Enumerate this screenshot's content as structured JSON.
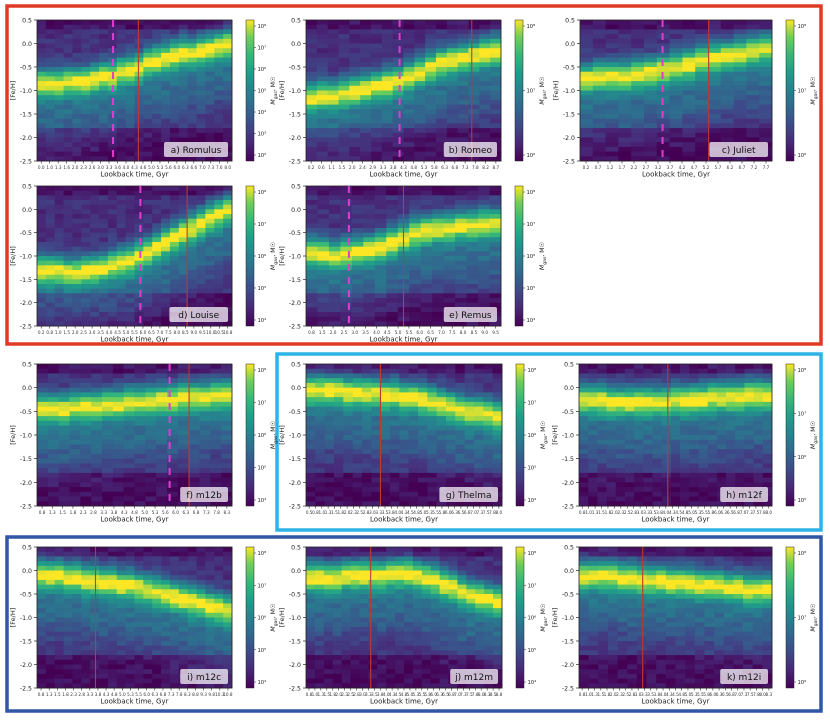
{
  "colors": {
    "group_red": "#e03a25",
    "group_cyan": "#2db3e6",
    "group_blue": "#2f57a6",
    "dashed_line": "#e23bd0",
    "solid_line": "#c0392b",
    "colormap": "viridis"
  },
  "y_axis_label": "[Fe/H]",
  "x_axis_label": "Lookback time, Gyr",
  "colorbar_label": "M_gas, M_☉",
  "colorbar_label_main": "M",
  "colorbar_label_sub": "gas",
  "colorbar_label_unit": ", M☉",
  "chart_data": [
    {
      "type": "heatmap",
      "panel_label": "a) Romulus",
      "ylim": [
        -2.5,
        0.5
      ],
      "yticks": [
        "0.5",
        "0.0",
        "-0.5",
        "-1.0",
        "-1.5",
        "-2.0",
        "-2.5"
      ],
      "xticks": [
        "0.0",
        "1.0",
        "1.3",
        "1.6",
        "2.0",
        "2.3",
        "2.6",
        "3.0",
        "3.3",
        "3.6",
        "4.0",
        "4.3",
        "4.6",
        "5.0",
        "5.3",
        "5.6",
        "6.0",
        "6.3",
        "6.6",
        "7.0",
        "7.3",
        "7.6",
        "8.0"
      ],
      "colorbar_ticks": [
        "10⁸",
        "10⁷",
        "10⁶",
        "10⁵",
        "10⁴",
        "10³",
        "10²"
      ],
      "dashed_line_frac": 0.39,
      "solid_line_frac": 0.52,
      "ridge": [
        -0.85,
        -0.85,
        -0.85,
        -0.8,
        -0.8,
        -0.8,
        -0.75,
        -0.7,
        -0.7,
        -0.6,
        -0.55,
        -0.5,
        -0.4,
        -0.35,
        -0.3,
        -0.25,
        -0.2,
        -0.2,
        -0.15,
        -0.1,
        -0.05,
        0.0
      ]
    },
    {
      "type": "heatmap",
      "panel_label": "b) Romeo",
      "ylim": [
        -2.5,
        0.5
      ],
      "yticks": [
        "0.5",
        "0.0",
        "-0.5",
        "-1.0",
        "-1.5",
        "-2.0",
        "-2.5"
      ],
      "xticks": [
        "0.2",
        "0.6",
        "1.1",
        "1.5",
        "2.0",
        "2.4",
        "2.9",
        "3.3",
        "3.8",
        "4.3",
        "4.8",
        "5.3",
        "5.8",
        "6.3",
        "6.8",
        "7.3",
        "7.8",
        "8.2",
        "8.7"
      ],
      "colorbar_ticks": [
        "10⁸",
        "10⁷",
        "10⁶"
      ],
      "dashed_line_frac": 0.48,
      "solid_line_frac": 0.85,
      "ridge": [
        -1.15,
        -1.1,
        -1.1,
        -1.05,
        -1.0,
        -0.95,
        -0.9,
        -0.85,
        -0.8,
        -0.7,
        -0.6,
        -0.5,
        -0.4,
        -0.35,
        -0.3,
        -0.25,
        -0.2,
        -0.15
      ]
    },
    {
      "type": "heatmap",
      "panel_label": "c) Juliet",
      "ylim": [
        -2.5,
        0.5
      ],
      "yticks": [
        "0.5",
        "0.0",
        "-0.5",
        "-1.0",
        "-1.5",
        "-2.0",
        "-2.5"
      ],
      "xticks": [
        "0.2",
        "0.7",
        "1.2",
        "1.7",
        "2.2",
        "2.7",
        "3.2",
        "3.7",
        "4.2",
        "4.7",
        "5.2",
        "5.7",
        "6.2",
        "6.7",
        "7.2",
        "7.7"
      ],
      "colorbar_ticks": [
        "10⁸",
        "10⁷",
        "10⁶"
      ],
      "dashed_line_frac": 0.43,
      "solid_line_frac": 0.67,
      "ridge": [
        -0.75,
        -0.7,
        -0.7,
        -0.7,
        -0.65,
        -0.6,
        -0.55,
        -0.5,
        -0.45,
        -0.35,
        -0.3,
        -0.25,
        -0.2,
        -0.15,
        -0.1
      ]
    },
    {
      "type": "heatmap",
      "panel_label": "d) Louise",
      "ylim": [
        -2.5,
        0.5
      ],
      "yticks": [
        "0.5",
        "0.0",
        "-0.5",
        "-1.0",
        "-1.5",
        "-2.0",
        "-2.5"
      ],
      "xticks": [
        "0.2",
        "0.8",
        "1.0",
        "1.5",
        "2.0",
        "2.5",
        "3.0",
        "3.5",
        "4.0",
        "4.5",
        "5.0",
        "5.5",
        "6.0",
        "6.5",
        "7.0",
        "7.5",
        "8.0",
        "8.5",
        "9.0",
        "9.5",
        "10.0",
        "10.5",
        "10.8"
      ],
      "colorbar_ticks": [
        "10⁸",
        "10⁷",
        "10⁶",
        "10⁵",
        "10⁴"
      ],
      "dashed_line_frac": 0.53,
      "solid_line_frac": 0.77,
      "ridge": [
        -1.3,
        -1.3,
        -1.3,
        -1.35,
        -1.35,
        -1.3,
        -1.3,
        -1.25,
        -1.2,
        -1.15,
        -1.1,
        -1.0,
        -0.9,
        -0.8,
        -0.7,
        -0.6,
        -0.5,
        -0.4,
        -0.3,
        -0.2,
        -0.1,
        0.0
      ]
    },
    {
      "type": "heatmap",
      "panel_label": "e) Remus",
      "ylim": [
        -2.5,
        0.5
      ],
      "yticks": [
        "0.5",
        "0.0",
        "-0.5",
        "-1.0",
        "-1.5",
        "-2.0",
        "-2.5"
      ],
      "xticks": [
        "0.8",
        "1.5",
        "2.0",
        "2.5",
        "3.0",
        "3.5",
        "4.0",
        "4.5",
        "5.0",
        "5.5",
        "6.0",
        "6.5",
        "7.0",
        "7.5",
        "8.0",
        "8.5",
        "9.0",
        "9.5"
      ],
      "colorbar_ticks": [
        "10⁸",
        "10⁷",
        "10⁶",
        "10⁵",
        "10⁴"
      ],
      "dashed_line_frac": 0.22,
      "solid_line_frac": 0.5,
      "ridge": [
        -0.9,
        -0.95,
        -1.0,
        -0.95,
        -0.9,
        -0.85,
        -0.8,
        -0.7,
        -0.6,
        -0.5,
        -0.45,
        -0.4,
        -0.4,
        -0.35,
        -0.35,
        -0.3,
        -0.3
      ]
    },
    {
      "type": "heatmap",
      "panel_label": "f) m12b",
      "ylim": [
        -2.5,
        0.5
      ],
      "yticks": [
        "0.5",
        "0.0",
        "-0.5",
        "-1.0",
        "-1.5",
        "-2.0",
        "-2.5"
      ],
      "xticks": [
        "0.8",
        "1.3",
        "1.5",
        "1.8",
        "2.3",
        "2.8",
        "3.3",
        "3.8",
        "4.3",
        "4.8",
        "5.0",
        "5.3",
        "5.6",
        "6.0",
        "6.3",
        "6.8",
        "7.3",
        "7.8",
        "8.3"
      ],
      "colorbar_ticks": [
        "10⁸",
        "10⁷",
        "10⁶",
        "10⁵",
        "10⁴"
      ],
      "dashed_line_frac": 0.68,
      "solid_line_frac": 0.78,
      "ridge": [
        -0.45,
        -0.45,
        -0.45,
        -0.4,
        -0.4,
        -0.4,
        -0.35,
        -0.35,
        -0.3,
        -0.3,
        -0.3,
        -0.25,
        -0.25,
        -0.2,
        -0.2,
        -0.2,
        -0.15,
        -0.15
      ]
    },
    {
      "type": "heatmap",
      "panel_label": "g) Thelma",
      "ylim": [
        -2.5,
        0.5
      ],
      "yticks": [
        "0.5",
        "0.0",
        "-0.5",
        "-1.0",
        "-1.5",
        "-2.0",
        "-2.5"
      ],
      "xticks": [
        "0.5",
        "0.8",
        "1.0",
        "1.3",
        "1.5",
        "1.8",
        "2.0",
        "2.3",
        "2.5",
        "2.8",
        "3.0",
        "3.3",
        "3.5",
        "3.8",
        "4.0",
        "4.3",
        "4.5",
        "4.8",
        "5.0",
        "5.3",
        "5.5",
        "5.8",
        "6.0",
        "6.3",
        "6.5",
        "6.8",
        "7.0",
        "7.3",
        "7.5",
        "7.8",
        "8.0"
      ],
      "colorbar_ticks": [
        "10⁸",
        "10⁷",
        "10⁶",
        "10⁵",
        "10⁴"
      ],
      "dashed_line_frac": null,
      "solid_line_frac": 0.38,
      "ridge": [
        -0.05,
        -0.05,
        -0.05,
        -0.05,
        -0.1,
        -0.1,
        -0.1,
        -0.1,
        -0.15,
        -0.15,
        -0.2,
        -0.2,
        -0.25,
        -0.3,
        -0.35,
        -0.4,
        -0.45,
        -0.5,
        -0.5,
        -0.55,
        -0.6
      ]
    },
    {
      "type": "heatmap",
      "panel_label": "h) m12f",
      "ylim": [
        -2.5,
        0.5
      ],
      "yticks": [
        "0.5",
        "0.0",
        "-0.5",
        "-1.0",
        "-1.5",
        "-2.0",
        "-2.5"
      ],
      "xticks": [
        "0.8",
        "1.0",
        "1.3",
        "1.5",
        "1.8",
        "2.0",
        "2.3",
        "2.5",
        "2.8",
        "3.0",
        "3.3",
        "3.5",
        "3.8",
        "4.0",
        "4.3",
        "4.5",
        "4.8",
        "5.0",
        "5.3",
        "5.5",
        "5.8",
        "6.0",
        "6.3",
        "6.5",
        "6.8",
        "7.0",
        "7.3",
        "7.5",
        "7.8",
        "8.0"
      ],
      "colorbar_ticks": [
        "10⁸",
        "10⁷",
        "10⁶",
        "10⁵"
      ],
      "dashed_line_frac": null,
      "solid_line_frac": 0.46,
      "ridge": [
        -0.25,
        -0.25,
        -0.25,
        -0.3,
        -0.3,
        -0.3,
        -0.3,
        -0.3,
        -0.3,
        -0.3,
        -0.25,
        -0.25,
        -0.25,
        -0.25,
        -0.2,
        -0.2,
        -0.2,
        -0.2,
        -0.15,
        -0.15,
        -0.15
      ]
    },
    {
      "type": "heatmap",
      "panel_label": "i) m12c",
      "ylim": [
        -2.5,
        0.5
      ],
      "yticks": [
        "0.5",
        "0.0",
        "-0.5",
        "-1.0",
        "-1.5",
        "-2.0",
        "-2.5"
      ],
      "xticks": [
        "0.8",
        "1.3",
        "1.5",
        "1.8",
        "2.3",
        "2.8",
        "3.3",
        "3.8",
        "4.3",
        "4.8",
        "5.0",
        "5.3",
        "5.5",
        "6.0",
        "6.3",
        "6.8",
        "7.3",
        "7.8",
        "8.3",
        "8.8",
        "9.3",
        "9.8",
        "10.3",
        "10.8"
      ],
      "colorbar_ticks": [
        "10⁸",
        "10⁷",
        "10⁶",
        "10⁵",
        "10⁴"
      ],
      "dashed_line_frac": null,
      "solid_line_frac": 0.3,
      "ridge": [
        -0.1,
        -0.1,
        -0.1,
        -0.15,
        -0.15,
        -0.2,
        -0.2,
        -0.25,
        -0.25,
        -0.3,
        -0.3,
        -0.35,
        -0.4,
        -0.45,
        -0.5,
        -0.55,
        -0.6,
        -0.65,
        -0.7,
        -0.75,
        -0.8,
        -0.85
      ]
    },
    {
      "type": "heatmap",
      "panel_label": "j) m12m",
      "ylim": [
        -2.5,
        0.5
      ],
      "yticks": [
        "0.5",
        "0.0",
        "-0.5",
        "-1.0",
        "-1.5",
        "-2.0",
        "-2.5"
      ],
      "xticks": [
        "0.8",
        "1.0",
        "1.3",
        "1.5",
        "1.8",
        "2.0",
        "2.3",
        "2.5",
        "2.8",
        "3.0",
        "3.3",
        "3.5",
        "3.8",
        "4.0",
        "4.3",
        "4.5",
        "4.8",
        "5.0",
        "5.3",
        "5.5",
        "5.8",
        "6.0",
        "6.3",
        "6.5",
        "6.8",
        "7.0",
        "7.3",
        "7.5",
        "7.8",
        "8.0",
        "8.3",
        "8.5",
        "8.8"
      ],
      "colorbar_ticks": [
        "10⁸",
        "10⁷",
        "10⁶",
        "10⁵",
        "10⁴"
      ],
      "dashed_line_frac": null,
      "solid_line_frac": 0.33,
      "ridge": [
        -0.15,
        -0.15,
        -0.15,
        -0.15,
        -0.1,
        -0.1,
        -0.1,
        -0.1,
        -0.1,
        -0.05,
        -0.05,
        -0.05,
        -0.1,
        -0.15,
        -0.2,
        -0.3,
        -0.35,
        -0.45,
        -0.5,
        -0.55,
        -0.6,
        -0.65
      ]
    },
    {
      "type": "heatmap",
      "panel_label": "k) m12i",
      "ylim": [
        -2.5,
        0.5
      ],
      "yticks": [
        "0.5",
        "0.0",
        "-0.5",
        "-1.0",
        "-1.5",
        "-2.0",
        "-2.5"
      ],
      "xticks": [
        "0.8",
        "1.0",
        "1.3",
        "1.5",
        "1.8",
        "2.0",
        "2.3",
        "2.5",
        "2.8",
        "3.0",
        "3.3",
        "3.5",
        "3.8",
        "4.0",
        "4.3",
        "4.5",
        "4.8",
        "5.0",
        "5.3",
        "5.5",
        "5.8",
        "6.0",
        "6.3",
        "6.5",
        "6.8",
        "7.0",
        "7.3",
        "7.5",
        "7.8",
        "8.0",
        "8.3"
      ],
      "colorbar_ticks": [
        "10⁸",
        "10⁷",
        "10⁶"
      ],
      "dashed_line_frac": null,
      "solid_line_frac": 0.33,
      "ridge": [
        -0.1,
        -0.1,
        -0.1,
        -0.1,
        -0.15,
        -0.15,
        -0.2,
        -0.2,
        -0.2,
        -0.25,
        -0.25,
        -0.25,
        -0.3,
        -0.3,
        -0.3,
        -0.35,
        -0.35,
        -0.4,
        -0.4,
        -0.4
      ]
    }
  ]
}
